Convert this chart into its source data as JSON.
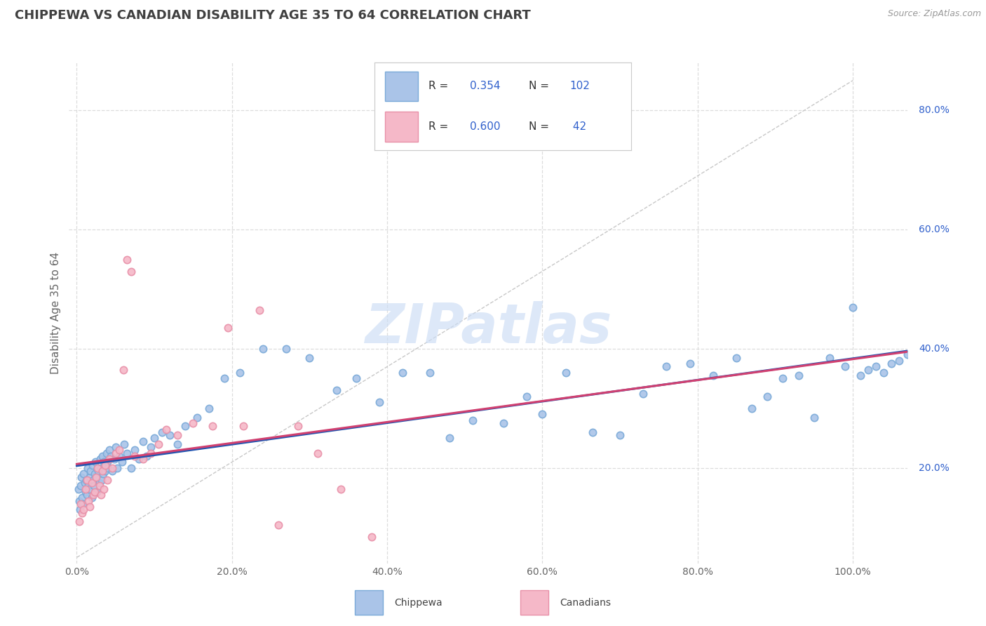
{
  "title": "CHIPPEWA VS CANADIAN DISABILITY AGE 35 TO 64 CORRELATION CHART",
  "source": "Source: ZipAtlas.com",
  "ylabel": "Disability Age 35 to 64",
  "watermark": "ZIPatlas",
  "chippewa_R": 0.354,
  "chippewa_N": 102,
  "canadians_R": 0.6,
  "canadians_N": 42,
  "chippewa_color_face": "#aac4e8",
  "chippewa_color_edge": "#7aaad8",
  "canadians_color_face": "#f5b8c8",
  "canadians_color_edge": "#e890a8",
  "chippewa_line_color": "#2255b0",
  "canadians_line_color": "#d04070",
  "ref_line_color": "#c8c8c8",
  "background_color": "#ffffff",
  "grid_color": "#dddddd",
  "title_color": "#404040",
  "title_fontsize": 13,
  "legend_text_color": "#333333",
  "legend_value_color": "#3060cc",
  "right_axis_color": "#3060cc",
  "source_color": "#999999",
  "chippewa_x": [
    0.2,
    0.3,
    0.4,
    0.5,
    0.6,
    0.7,
    0.8,
    0.9,
    1.0,
    1.1,
    1.2,
    1.3,
    1.4,
    1.5,
    1.6,
    1.7,
    1.8,
    1.9,
    2.0,
    2.1,
    2.2,
    2.3,
    2.4,
    2.5,
    2.6,
    2.7,
    2.8,
    2.9,
    3.0,
    3.1,
    3.2,
    3.3,
    3.4,
    3.5,
    3.6,
    3.7,
    3.8,
    3.9,
    4.0,
    4.2,
    4.4,
    4.6,
    4.8,
    5.0,
    5.2,
    5.5,
    5.8,
    6.1,
    6.5,
    7.0,
    7.5,
    8.0,
    8.5,
    9.0,
    9.5,
    10.0,
    11.0,
    12.0,
    13.0,
    14.0,
    15.5,
    17.0,
    19.0,
    21.0,
    24.0,
    27.0,
    30.0,
    33.5,
    36.0,
    39.0,
    42.0,
    45.5,
    48.0,
    51.0,
    55.0,
    58.0,
    60.0,
    63.0,
    66.5,
    70.0,
    73.0,
    76.0,
    79.0,
    82.0,
    85.0,
    87.0,
    89.0,
    91.0,
    93.0,
    95.0,
    97.0,
    99.0,
    100.0,
    101.0,
    102.0,
    103.0,
    104.0,
    105.0,
    106.0,
    107.0
  ],
  "chippewa_y": [
    16.5,
    14.5,
    13.0,
    17.0,
    18.5,
    15.0,
    14.0,
    19.0,
    17.5,
    16.0,
    18.0,
    15.5,
    20.0,
    17.0,
    16.5,
    18.5,
    19.5,
    15.0,
    20.5,
    18.0,
    17.0,
    19.0,
    21.0,
    18.5,
    16.0,
    20.0,
    19.5,
    17.5,
    21.5,
    20.0,
    18.0,
    22.0,
    19.0,
    21.0,
    20.5,
    19.5,
    22.5,
    21.0,
    20.0,
    23.0,
    22.0,
    19.5,
    21.5,
    23.5,
    20.0,
    22.0,
    21.0,
    24.0,
    22.5,
    20.0,
    23.0,
    21.5,
    24.5,
    22.0,
    23.5,
    25.0,
    26.0,
    25.5,
    24.0,
    27.0,
    28.5,
    30.0,
    35.0,
    36.0,
    40.0,
    40.0,
    38.5,
    33.0,
    35.0,
    31.0,
    36.0,
    36.0,
    25.0,
    28.0,
    27.5,
    32.0,
    29.0,
    36.0,
    26.0,
    25.5,
    32.5,
    37.0,
    37.5,
    35.5,
    38.5,
    30.0,
    32.0,
    35.0,
    35.5,
    28.5,
    38.5,
    37.0,
    47.0,
    35.5,
    36.5,
    37.0,
    36.0,
    37.5,
    38.0,
    39.0
  ],
  "canadians_x": [
    0.3,
    0.5,
    0.7,
    0.9,
    1.1,
    1.3,
    1.5,
    1.7,
    1.9,
    2.1,
    2.3,
    2.5,
    2.7,
    2.9,
    3.1,
    3.3,
    3.5,
    3.7,
    3.9,
    4.2,
    4.6,
    5.0,
    5.5,
    6.0,
    6.5,
    7.0,
    7.5,
    8.5,
    9.5,
    10.5,
    11.5,
    13.0,
    15.0,
    17.5,
    19.5,
    21.5,
    23.5,
    26.0,
    28.5,
    31.0,
    34.0,
    38.0
  ],
  "canadians_y": [
    11.0,
    14.0,
    12.5,
    13.0,
    16.5,
    18.0,
    14.5,
    13.5,
    17.5,
    15.5,
    16.0,
    18.5,
    20.0,
    17.0,
    15.5,
    19.5,
    16.5,
    20.5,
    18.0,
    21.5,
    20.0,
    22.5,
    23.0,
    36.5,
    55.0,
    53.0,
    22.0,
    21.5,
    22.5,
    24.0,
    26.5,
    25.5,
    27.5,
    27.0,
    43.5,
    27.0,
    46.5,
    10.5,
    27.0,
    22.5,
    16.5,
    8.5
  ]
}
